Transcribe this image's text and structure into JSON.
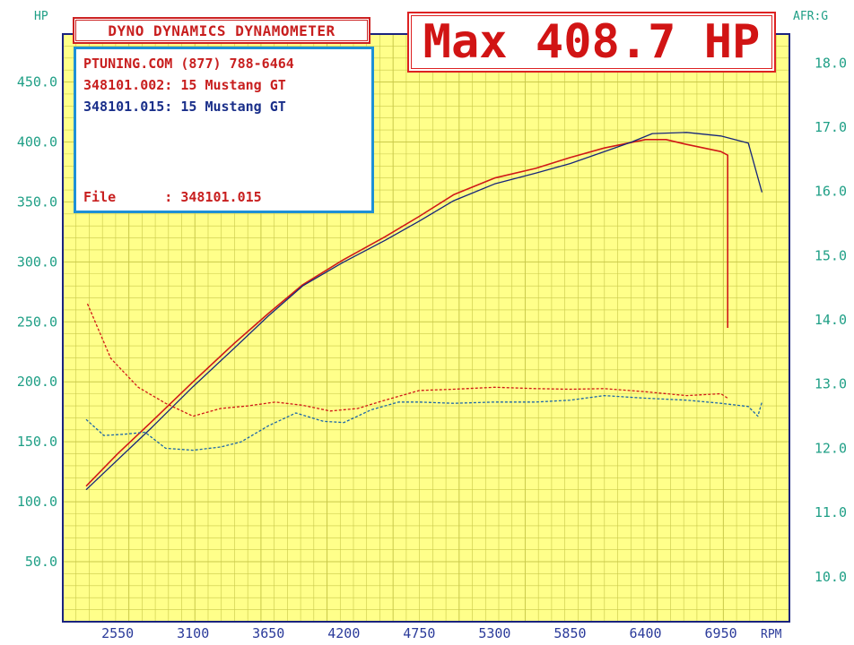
{
  "header": {
    "left_unit": "HP",
    "right_unit": "AFR:G",
    "x_unit": "RPM",
    "title": "DYNO DYNAMICS DYNAMOMETER",
    "max_readout": "Max 408.7 HP"
  },
  "info": {
    "shop": "PTUNING.COM (877) 788-6464",
    "run1": "348101.002: 15 Mustang GT",
    "run2": "348101.015: 15 Mustang GT",
    "file": "File      : 348101.015"
  },
  "colors": {
    "background_grid": "#ffff8a",
    "grid_line": "#c9c94a",
    "frame": "#1a237e",
    "run1": "#d01818",
    "run2": "#16257a",
    "run2_dashed": "#1c66a8",
    "axis_text": "#1f9f86"
  },
  "chart_data": {
    "type": "line",
    "title": "DYNO DYNAMICS DYNAMOMETER",
    "xlabel": "RPM",
    "ylabel": "HP",
    "y2label": "AFR:G",
    "x_ticks": [
      "2550",
      "3100",
      "3650",
      "4200",
      "4750",
      "5300",
      "5850",
      "6400",
      "6950"
    ],
    "y_ticks": [
      "50.0",
      "100.0",
      "150.0",
      "200.0",
      "250.0",
      "300.0",
      "350.0",
      "400.0",
      "450.0"
    ],
    "y2_ticks": [
      "10.0",
      "11.0",
      "12.0",
      "13.0",
      "14.0",
      "15.0",
      "16.0",
      "17.0",
      "18.0"
    ],
    "xlim": [
      2150,
      7450
    ],
    "ylim": [
      0,
      490
    ],
    "y2lim": [
      9.3,
      18.45
    ],
    "grid": true,
    "series": [
      {
        "name": "348101.002: 15 Mustang GT",
        "kind": "power",
        "axis": "left",
        "x": [
          2320,
          2550,
          2800,
          3100,
          3400,
          3650,
          3900,
          4200,
          4500,
          4750,
          5000,
          5300,
          5600,
          5850,
          6100,
          6400,
          6550,
          6700,
          6950,
          7000,
          7000
        ],
        "y": [
          113,
          140,
          167,
          200,
          232,
          257,
          281,
          302,
          321,
          338,
          356,
          370,
          378,
          387,
          395,
          402,
          402,
          398,
          392,
          389,
          245
        ]
      },
      {
        "name": "348101.015: 15 Mustang GT",
        "kind": "power",
        "axis": "left",
        "x": [
          2320,
          2550,
          2800,
          3100,
          3400,
          3650,
          3900,
          4200,
          4500,
          4750,
          5000,
          5300,
          5600,
          5850,
          6100,
          6300,
          6450,
          6700,
          6950,
          7150,
          7250
        ],
        "y": [
          110,
          135,
          162,
          196,
          228,
          255,
          280,
          300,
          318,
          334,
          351,
          365,
          374,
          382,
          392,
          400,
          407,
          408,
          405,
          399,
          358
        ]
      },
      {
        "name": "348101.002: 15 Mustang GT",
        "kind": "afr",
        "axis": "right",
        "x": [
          2330,
          2500,
          2700,
          2900,
          3100,
          3300,
          3500,
          3700,
          3900,
          4100,
          4300,
          4500,
          4750,
          5000,
          5300,
          5600,
          5850,
          6100,
          6400,
          6700,
          6950,
          7000
        ],
        "y": [
          14.25,
          13.4,
          12.95,
          12.7,
          12.5,
          12.62,
          12.66,
          12.72,
          12.67,
          12.58,
          12.62,
          12.75,
          12.9,
          12.92,
          12.95,
          12.93,
          12.92,
          12.93,
          12.88,
          12.82,
          12.85,
          12.78
        ]
      },
      {
        "name": "348101.015: 15 Mustang GT",
        "kind": "afr",
        "axis": "right",
        "x": [
          2320,
          2450,
          2600,
          2750,
          2900,
          3100,
          3300,
          3450,
          3650,
          3850,
          4050,
          4200,
          4400,
          4600,
          4750,
          5000,
          5300,
          5600,
          5850,
          6100,
          6400,
          6700,
          6950,
          7150,
          7220,
          7250
        ],
        "y": [
          12.45,
          12.2,
          12.22,
          12.25,
          12.0,
          11.97,
          12.02,
          12.1,
          12.35,
          12.55,
          12.42,
          12.4,
          12.6,
          12.72,
          12.72,
          12.7,
          12.72,
          12.72,
          12.75,
          12.82,
          12.78,
          12.75,
          12.7,
          12.65,
          12.5,
          12.72
        ]
      }
    ]
  }
}
